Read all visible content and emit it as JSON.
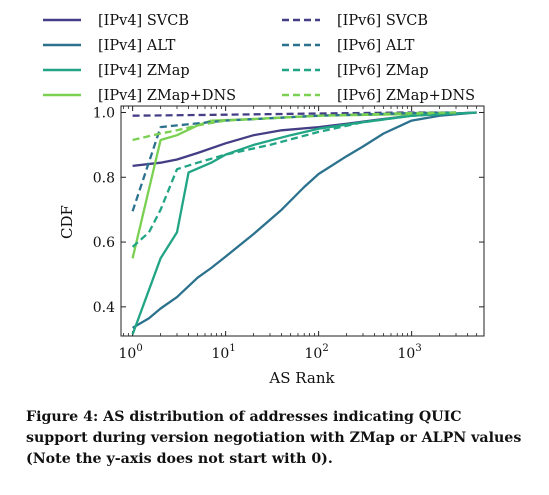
{
  "chart_data": {
    "type": "line",
    "xlabel": "AS Rank",
    "ylabel": "CDF",
    "xscale": "log",
    "xlim": [
      0.75,
      6000
    ],
    "ylim": [
      0.31,
      1.02
    ],
    "x_ticks": [
      {
        "v": 1,
        "m": "10",
        "e": "0"
      },
      {
        "v": 10,
        "m": "10",
        "e": "1"
      },
      {
        "v": 100,
        "m": "10",
        "e": "2"
      },
      {
        "v": 1000,
        "m": "10",
        "e": "3"
      }
    ],
    "y_ticks": [
      0.4,
      0.6,
      0.8,
      1.0
    ],
    "y_tick_labels": [
      "0.4",
      "0.6",
      "0.8",
      "1.0"
    ],
    "legend_position": "top (two columns, above plot)",
    "series": [
      {
        "name": "[IPv4] SVCB",
        "color": "#433e85",
        "dash": "solid",
        "points": [
          [
            1,
            0.835
          ],
          [
            2,
            0.845
          ],
          [
            3,
            0.855
          ],
          [
            5,
            0.875
          ],
          [
            10,
            0.905
          ],
          [
            20,
            0.93
          ],
          [
            40,
            0.945
          ],
          [
            100,
            0.955
          ],
          [
            200,
            0.965
          ],
          [
            500,
            0.98
          ],
          [
            1000,
            0.99
          ],
          [
            2000,
            0.995
          ],
          [
            5000,
            1.0
          ]
        ]
      },
      {
        "name": "[IPv4] ALT",
        "color": "#2c728e",
        "dash": "solid",
        "points": [
          [
            1,
            0.335
          ],
          [
            1.5,
            0.365
          ],
          [
            2,
            0.395
          ],
          [
            3,
            0.43
          ],
          [
            5,
            0.49
          ],
          [
            7,
            0.52
          ],
          [
            10,
            0.555
          ],
          [
            20,
            0.625
          ],
          [
            40,
            0.7
          ],
          [
            70,
            0.77
          ],
          [
            100,
            0.81
          ],
          [
            200,
            0.865
          ],
          [
            300,
            0.895
          ],
          [
            500,
            0.935
          ],
          [
            1000,
            0.975
          ],
          [
            2000,
            0.99
          ],
          [
            5000,
            1.0
          ]
        ]
      },
      {
        "name": "[IPv4] ZMap",
        "color": "#21a585",
        "dash": "solid",
        "points": [
          [
            1,
            0.315
          ],
          [
            2,
            0.55
          ],
          [
            3,
            0.63
          ],
          [
            4,
            0.815
          ],
          [
            7,
            0.845
          ],
          [
            10,
            0.87
          ],
          [
            20,
            0.9
          ],
          [
            50,
            0.93
          ],
          [
            100,
            0.95
          ],
          [
            300,
            0.97
          ],
          [
            1000,
            0.99
          ],
          [
            5000,
            1.0
          ]
        ]
      },
      {
        "name": "[IPv4] ZMap+DNS",
        "color": "#7ad151",
        "dash": "solid",
        "points": [
          [
            1,
            0.55
          ],
          [
            2,
            0.915
          ],
          [
            3,
            0.93
          ],
          [
            5,
            0.96
          ],
          [
            7,
            0.975
          ],
          [
            20,
            0.98
          ],
          [
            100,
            0.99
          ],
          [
            1000,
            0.995
          ],
          [
            3000,
            1.0
          ]
        ]
      },
      {
        "name": "[IPv6] SVCB",
        "color": "#433e85",
        "dash": "dashed",
        "points": [
          [
            1,
            0.99
          ],
          [
            10,
            0.993
          ],
          [
            100,
            0.997
          ],
          [
            1000,
            1.0
          ],
          [
            3000,
            1.0
          ]
        ]
      },
      {
        "name": "[IPv6] ALT",
        "color": "#2c728e",
        "dash": "dashed",
        "points": [
          [
            1,
            0.695
          ],
          [
            2,
            0.955
          ],
          [
            3,
            0.96
          ],
          [
            10,
            0.975
          ],
          [
            100,
            0.99
          ],
          [
            1000,
            0.998
          ],
          [
            3000,
            1.0
          ]
        ]
      },
      {
        "name": "[IPv6] ZMap",
        "color": "#21a585",
        "dash": "dashed",
        "points": [
          [
            1,
            0.585
          ],
          [
            1.5,
            0.63
          ],
          [
            2,
            0.7
          ],
          [
            3,
            0.825
          ],
          [
            5,
            0.845
          ],
          [
            10,
            0.87
          ],
          [
            30,
            0.9
          ],
          [
            100,
            0.94
          ],
          [
            300,
            0.97
          ],
          [
            1000,
            0.99
          ],
          [
            3000,
            1.0
          ]
        ]
      },
      {
        "name": "[IPv6] ZMap+DNS",
        "color": "#7ad151",
        "dash": "dashed",
        "points": [
          [
            1,
            0.915
          ],
          [
            2,
            0.935
          ],
          [
            3,
            0.945
          ],
          [
            5,
            0.96
          ],
          [
            10,
            0.975
          ],
          [
            100,
            0.99
          ],
          [
            1000,
            0.998
          ],
          [
            3000,
            1.0
          ]
        ]
      }
    ]
  },
  "caption": "Figure 4: AS distribution of addresses indicating QUIC support during version negotiation with ZMap or ALPN values (Note the y-axis does not start with 0)."
}
